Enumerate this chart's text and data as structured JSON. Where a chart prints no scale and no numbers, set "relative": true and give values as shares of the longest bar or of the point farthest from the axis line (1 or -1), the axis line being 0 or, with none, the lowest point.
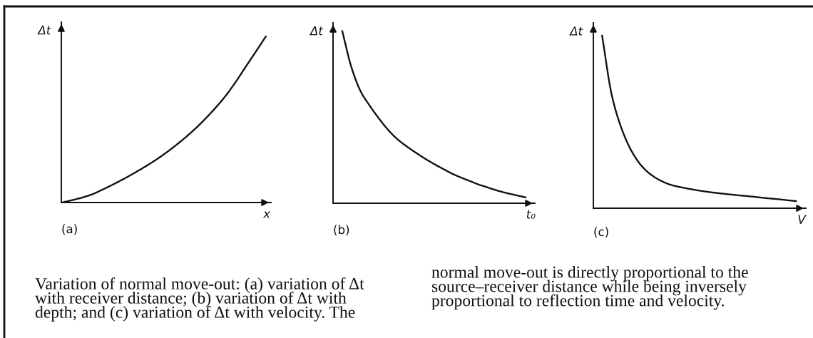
{
  "chart_data": [
    {
      "type": "line",
      "title": "(a)",
      "xlabel": "x",
      "ylabel": "Δt",
      "relative": true,
      "categories": [
        null,
        null,
        null,
        null,
        null,
        null,
        null,
        null,
        null,
        null,
        null,
        null,
        null,
        null,
        null,
        null,
        null,
        null,
        null,
        null,
        null
      ],
      "series": [
        {
          "color": "#111111",
          "values": [
            0,
            0.014,
            0.03,
            0.05,
            0.078,
            0.108,
            0.14,
            0.174,
            0.21,
            0.248,
            0.29,
            0.336,
            0.386,
            0.44,
            0.5,
            0.566,
            0.638,
            0.722,
            0.815,
            0.907,
            1.0
          ]
        }
      ],
      "annotations": [
        "Variation of normal move-out: (a) variation of Δt\nwith receiver distance; (b) variation of Δt with\ndepth; and (c) variation of Δt with velocity. The"
      ]
    },
    {
      "type": "line",
      "title": "(b)",
      "xlabel": "t₀",
      "ylabel": "Δt",
      "relative": true,
      "categories": [
        null,
        null,
        null,
        null,
        null,
        null,
        null,
        null,
        null,
        null,
        null,
        null,
        null,
        null,
        null,
        null,
        null,
        null,
        null,
        null,
        null
      ],
      "series": [
        {
          "color": "#111111",
          "values": [
            1.0,
            0.79,
            0.65,
            0.566,
            0.492,
            0.426,
            0.372,
            0.331,
            0.294,
            0.26,
            0.228,
            0.199,
            0.171,
            0.148,
            0.127,
            0.106,
            0.089,
            0.072,
            0.058,
            0.046,
            0.034
          ]
        }
      ]
    },
    {
      "type": "line",
      "title": "(c)",
      "xlabel": "V",
      "ylabel": "Δt",
      "relative": true,
      "categories": [
        null,
        null,
        null,
        null,
        null,
        null,
        null,
        null,
        null,
        null,
        null,
        null,
        null,
        null,
        null,
        null,
        null,
        null,
        null,
        null,
        null
      ],
      "series": [
        {
          "color": "#111111",
          "values": [
            1.0,
            0.655,
            0.463,
            0.335,
            0.25,
            0.196,
            0.161,
            0.137,
            0.123,
            0.112,
            0.102,
            0.094,
            0.087,
            0.081,
            0.075,
            0.07,
            0.064,
            0.058,
            0.053,
            0.047,
            0.041
          ]
        }
      ],
      "annotations": [
        "normal move-out is directly proportional to the\nsource–receiver distance while being inversely\nproportional to reflection time and velocity."
      ]
    }
  ]
}
